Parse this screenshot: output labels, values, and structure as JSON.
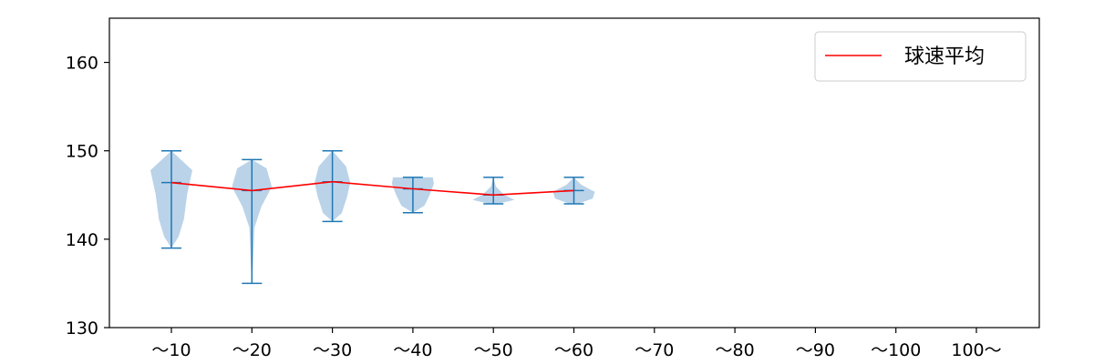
{
  "chart_data": {
    "type": "violin",
    "title": "",
    "xlabel": "",
    "ylabel": "",
    "categories": [
      "〜10",
      "〜20",
      "〜30",
      "〜40",
      "〜50",
      "〜60",
      "〜70",
      "〜80",
      "〜90",
      "〜100",
      "100〜"
    ],
    "ylim": [
      130,
      165
    ],
    "yticks": [
      130,
      140,
      150,
      160
    ],
    "grid": false,
    "legend_position": "top-right",
    "colors": {
      "violin_fill": "#a9c8e3",
      "violin_lines": "#1f77b4",
      "mean_line": "#ff0000"
    },
    "violins": [
      {
        "category": "〜10",
        "min": 139,
        "max": 150,
        "mean": 146.4
      },
      {
        "category": "〜20",
        "min": 135,
        "max": 149,
        "mean": 145.5
      },
      {
        "category": "〜30",
        "min": 142,
        "max": 150,
        "mean": 146.5
      },
      {
        "category": "〜40",
        "min": 143,
        "max": 147,
        "mean": 145.7
      },
      {
        "category": "〜50",
        "min": 144,
        "max": 147,
        "mean": 145.0
      },
      {
        "category": "〜60",
        "min": 144,
        "max": 147,
        "mean": 145.5
      }
    ],
    "series": [
      {
        "name": "球速平均",
        "values": [
          146.4,
          145.5,
          146.5,
          145.7,
          145.0,
          145.5,
          null,
          null,
          null,
          null,
          null
        ]
      }
    ]
  }
}
